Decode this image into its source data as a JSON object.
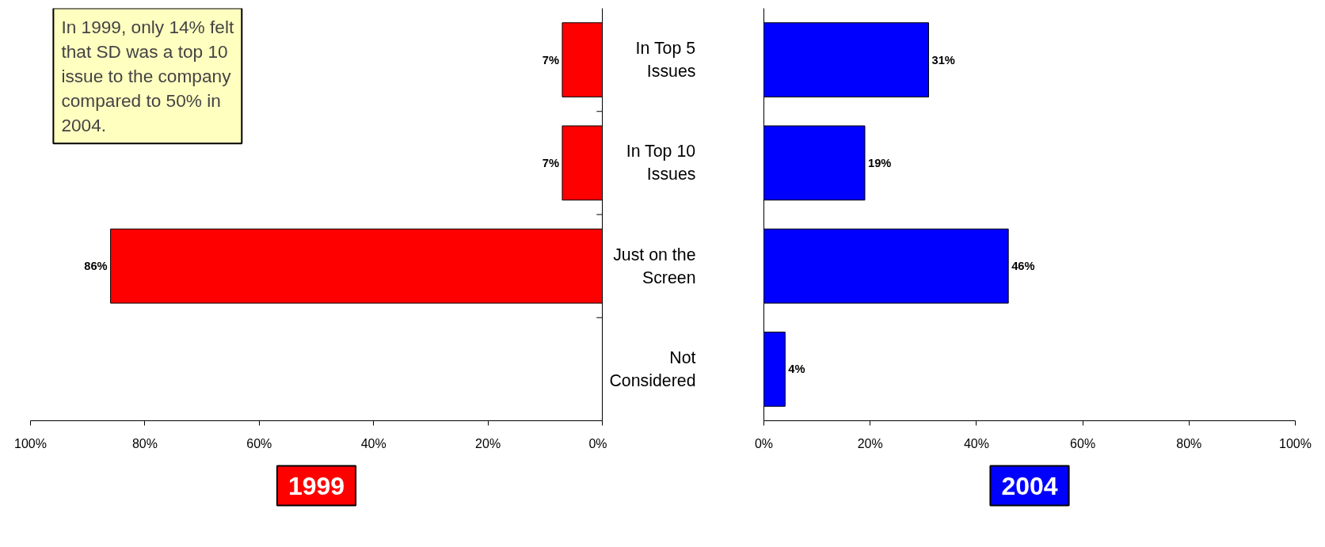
{
  "chart_data": [
    {
      "type": "bar",
      "orientation": "horizontal",
      "title": "1999",
      "categories": [
        "In Top 5 Issues",
        "In Top 10 Issues",
        "Just on the Screen",
        "Not Considered"
      ],
      "tick_labels": "x",
      "series": [
        {
          "color": "#ff0000",
          "values": [
            7,
            7,
            86,
            null
          ],
          "value_labels": [
            "7%",
            "7%",
            "86%",
            null
          ]
        }
      ],
      "xlim": [
        100,
        0
      ],
      "xticks": [
        {
          "value": 100,
          "label": "100%"
        },
        {
          "value": 80,
          "label": "80%"
        },
        {
          "value": 60,
          "label": "60%"
        },
        {
          "value": 40,
          "label": "40%"
        },
        {
          "value": 20,
          "label": "20%"
        },
        {
          "value": 0,
          "label": "0%"
        }
      ],
      "grid": false,
      "annotations": [
        "In 1999, only 14% felt that SD was a top 10 issue to the company compared to 50% in 2004."
      ]
    },
    {
      "type": "bar",
      "orientation": "horizontal",
      "title": "2004",
      "categories": [
        "In Top 5 Issues",
        "In Top 10 Issues",
        "Just on the Screen",
        "Not Considered"
      ],
      "series": [
        {
          "color": "#0000ff",
          "values": [
            31,
            19,
            46,
            4
          ],
          "value_labels": [
            "31%",
            "19%",
            "46%",
            "4%"
          ]
        }
      ],
      "xlim": [
        0,
        100
      ],
      "xticks": [
        {
          "value": 0,
          "label": "0%"
        },
        {
          "value": 20,
          "label": "20%"
        },
        {
          "value": 40,
          "label": "40%"
        },
        {
          "value": 60,
          "label": "60%"
        },
        {
          "value": 80,
          "label": "80%"
        },
        {
          "value": 100,
          "label": "100%"
        }
      ],
      "grid": false
    }
  ]
}
